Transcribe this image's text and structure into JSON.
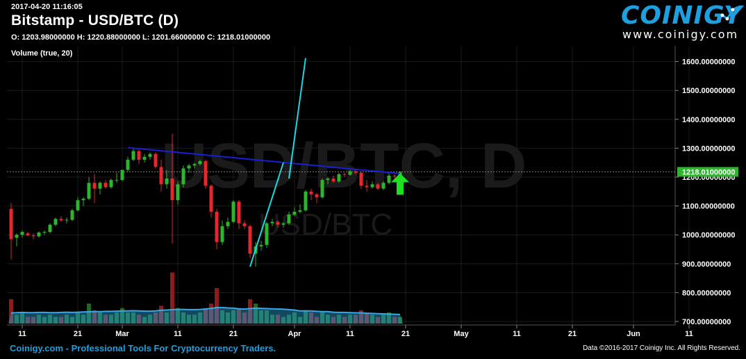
{
  "header": {
    "timestamp": "2017-04-20 11:16:05",
    "title": "Bitstamp - USD/BTC (D)",
    "ohlc": "O: 1203.98000000 H: 1220.88000000 L: 1201.66000000 C: 1218.01000000",
    "volume_label": "Volume (true, 20)"
  },
  "brand": {
    "name": "COINIGY",
    "url": "www.coinigy.com"
  },
  "watermark": {
    "big": "USD/BTC, D",
    "small": "USD/BTC"
  },
  "footer": {
    "left": "Coinigy.com - Professional Tools For Cryptocurrency Traders.",
    "right": "Data ©2016-2017 Coinigy Inc. All Rights Reserved."
  },
  "colors": {
    "up": "#2db52d",
    "down": "#e8262e",
    "vol_up": "#1e6b1e",
    "vol_down": "#8c1c1c",
    "grid": "#1c1c1c",
    "trend_blue": "#1820d6",
    "trend_cyan": "#1dd8e0",
    "arrow": "#1fe01f",
    "vol_ma_fill": "#2aa0d8",
    "price_tag": "#2db52d"
  },
  "chart_data": {
    "type": "candlestick",
    "title": "Bitstamp - USD/BTC (D)",
    "ylim": [
      690,
      1660
    ],
    "y_ticks": [
      700,
      800,
      900,
      1000,
      1100,
      1200,
      1300,
      1400,
      1500,
      1600
    ],
    "y_tick_labels": [
      "700.00000000",
      "800.00000000",
      "900.00000000",
      "1000.00000000",
      "1100.00000000",
      "1200.00000000",
      "1300.00000000",
      "1400.00000000",
      "1500.00000000",
      "1600.00000000"
    ],
    "x_ticks": [
      {
        "date": "2017-02-11",
        "label": "11"
      },
      {
        "date": "2017-02-21",
        "label": "21"
      },
      {
        "date": "2017-03-01",
        "label": "Mar"
      },
      {
        "date": "2017-03-11",
        "label": "11"
      },
      {
        "date": "2017-03-21",
        "label": "21"
      },
      {
        "date": "2017-04-01",
        "label": "Apr"
      },
      {
        "date": "2017-04-11",
        "label": "11"
      },
      {
        "date": "2017-04-21",
        "label": "21"
      },
      {
        "date": "2017-05-01",
        "label": "May"
      },
      {
        "date": "2017-05-11",
        "label": "11"
      },
      {
        "date": "2017-05-21",
        "label": "21"
      },
      {
        "date": "2017-06-01",
        "label": "Jun"
      },
      {
        "date": "2017-06-11",
        "label": "11"
      }
    ],
    "last_price": 1218.01,
    "last_price_label": "1218.01000000",
    "candles": [
      {
        "date": "2017-02-09",
        "o": 1090,
        "h": 1110,
        "l": 915,
        "c": 985
      },
      {
        "date": "2017-02-10",
        "o": 990,
        "h": 1005,
        "l": 960,
        "c": 1000
      },
      {
        "date": "2017-02-11",
        "o": 1000,
        "h": 1015,
        "l": 990,
        "c": 1010
      },
      {
        "date": "2017-02-12",
        "o": 1005,
        "h": 1010,
        "l": 995,
        "c": 998
      },
      {
        "date": "2017-02-13",
        "o": 998,
        "h": 1005,
        "l": 985,
        "c": 995
      },
      {
        "date": "2017-02-14",
        "o": 995,
        "h": 1012,
        "l": 990,
        "c": 1008
      },
      {
        "date": "2017-02-15",
        "o": 1008,
        "h": 1015,
        "l": 1000,
        "c": 1010
      },
      {
        "date": "2017-02-16",
        "o": 1010,
        "h": 1040,
        "l": 1005,
        "c": 1035
      },
      {
        "date": "2017-02-17",
        "o": 1035,
        "h": 1060,
        "l": 1030,
        "c": 1055
      },
      {
        "date": "2017-02-18",
        "o": 1055,
        "h": 1065,
        "l": 1045,
        "c": 1050
      },
      {
        "date": "2017-02-19",
        "o": 1050,
        "h": 1060,
        "l": 1040,
        "c": 1052
      },
      {
        "date": "2017-02-20",
        "o": 1052,
        "h": 1090,
        "l": 1048,
        "c": 1085
      },
      {
        "date": "2017-02-21",
        "o": 1085,
        "h": 1130,
        "l": 1080,
        "c": 1120
      },
      {
        "date": "2017-02-22",
        "o": 1120,
        "h": 1130,
        "l": 1100,
        "c": 1125
      },
      {
        "date": "2017-02-23",
        "o": 1125,
        "h": 1200,
        "l": 1120,
        "c": 1180
      },
      {
        "date": "2017-02-24",
        "o": 1180,
        "h": 1210,
        "l": 1110,
        "c": 1160
      },
      {
        "date": "2017-02-25",
        "o": 1160,
        "h": 1185,
        "l": 1140,
        "c": 1180
      },
      {
        "date": "2017-02-26",
        "o": 1180,
        "h": 1190,
        "l": 1160,
        "c": 1165
      },
      {
        "date": "2017-02-27",
        "o": 1165,
        "h": 1195,
        "l": 1160,
        "c": 1190
      },
      {
        "date": "2017-02-28",
        "o": 1190,
        "h": 1215,
        "l": 1180,
        "c": 1190
      },
      {
        "date": "2017-03-01",
        "o": 1190,
        "h": 1225,
        "l": 1185,
        "c": 1225
      },
      {
        "date": "2017-03-02",
        "o": 1225,
        "h": 1270,
        "l": 1220,
        "c": 1260
      },
      {
        "date": "2017-03-03",
        "o": 1260,
        "h": 1300,
        "l": 1255,
        "c": 1290
      },
      {
        "date": "2017-03-04",
        "o": 1290,
        "h": 1295,
        "l": 1245,
        "c": 1260
      },
      {
        "date": "2017-03-05",
        "o": 1260,
        "h": 1280,
        "l": 1250,
        "c": 1270
      },
      {
        "date": "2017-03-06",
        "o": 1270,
        "h": 1285,
        "l": 1260,
        "c": 1280
      },
      {
        "date": "2017-03-07",
        "o": 1280,
        "h": 1285,
        "l": 1230,
        "c": 1235
      },
      {
        "date": "2017-03-08",
        "o": 1235,
        "h": 1260,
        "l": 1150,
        "c": 1175
      },
      {
        "date": "2017-03-09",
        "o": 1175,
        "h": 1225,
        "l": 1160,
        "c": 1195
      },
      {
        "date": "2017-03-10",
        "o": 1195,
        "h": 1350,
        "l": 970,
        "c": 1120
      },
      {
        "date": "2017-03-11",
        "o": 1120,
        "h": 1185,
        "l": 1105,
        "c": 1175
      },
      {
        "date": "2017-03-12",
        "o": 1175,
        "h": 1240,
        "l": 1165,
        "c": 1230
      },
      {
        "date": "2017-03-13",
        "o": 1230,
        "h": 1245,
        "l": 1215,
        "c": 1240
      },
      {
        "date": "2017-03-14",
        "o": 1240,
        "h": 1250,
        "l": 1230,
        "c": 1245
      },
      {
        "date": "2017-03-15",
        "o": 1245,
        "h": 1260,
        "l": 1240,
        "c": 1255
      },
      {
        "date": "2017-03-16",
        "o": 1255,
        "h": 1260,
        "l": 1160,
        "c": 1170
      },
      {
        "date": "2017-03-17",
        "o": 1170,
        "h": 1175,
        "l": 1060,
        "c": 1080
      },
      {
        "date": "2017-03-18",
        "o": 1080,
        "h": 1090,
        "l": 950,
        "c": 975
      },
      {
        "date": "2017-03-19",
        "o": 975,
        "h": 1050,
        "l": 965,
        "c": 1030
      },
      {
        "date": "2017-03-20",
        "o": 1030,
        "h": 1060,
        "l": 1020,
        "c": 1045
      },
      {
        "date": "2017-03-21",
        "o": 1045,
        "h": 1120,
        "l": 1040,
        "c": 1115
      },
      {
        "date": "2017-03-22",
        "o": 1115,
        "h": 1120,
        "l": 1020,
        "c": 1040
      },
      {
        "date": "2017-03-23",
        "o": 1040,
        "h": 1050,
        "l": 1020,
        "c": 1030
      },
      {
        "date": "2017-03-24",
        "o": 1030,
        "h": 1035,
        "l": 920,
        "c": 935
      },
      {
        "date": "2017-03-25",
        "o": 935,
        "h": 975,
        "l": 890,
        "c": 960
      },
      {
        "date": "2017-03-26",
        "o": 960,
        "h": 980,
        "l": 945,
        "c": 965
      },
      {
        "date": "2017-03-27",
        "o": 965,
        "h": 1045,
        "l": 955,
        "c": 1040
      },
      {
        "date": "2017-03-28",
        "o": 1040,
        "h": 1055,
        "l": 1030,
        "c": 1045
      },
      {
        "date": "2017-03-29",
        "o": 1045,
        "h": 1050,
        "l": 1025,
        "c": 1035
      },
      {
        "date": "2017-03-30",
        "o": 1035,
        "h": 1045,
        "l": 1025,
        "c": 1040
      },
      {
        "date": "2017-03-31",
        "o": 1040,
        "h": 1080,
        "l": 1035,
        "c": 1070
      },
      {
        "date": "2017-04-01",
        "o": 1070,
        "h": 1095,
        "l": 1065,
        "c": 1080
      },
      {
        "date": "2017-04-02",
        "o": 1080,
        "h": 1105,
        "l": 1075,
        "c": 1085
      },
      {
        "date": "2017-04-03",
        "o": 1085,
        "h": 1155,
        "l": 1080,
        "c": 1150
      },
      {
        "date": "2017-04-04",
        "o": 1150,
        "h": 1160,
        "l": 1120,
        "c": 1140
      },
      {
        "date": "2017-04-05",
        "o": 1140,
        "h": 1145,
        "l": 1110,
        "c": 1130
      },
      {
        "date": "2017-04-06",
        "o": 1130,
        "h": 1195,
        "l": 1125,
        "c": 1190
      },
      {
        "date": "2017-04-07",
        "o": 1190,
        "h": 1200,
        "l": 1175,
        "c": 1195
      },
      {
        "date": "2017-04-08",
        "o": 1195,
        "h": 1205,
        "l": 1180,
        "c": 1185
      },
      {
        "date": "2017-04-09",
        "o": 1185,
        "h": 1215,
        "l": 1180,
        "c": 1210
      },
      {
        "date": "2017-04-10",
        "o": 1210,
        "h": 1215,
        "l": 1200,
        "c": 1208
      },
      {
        "date": "2017-04-11",
        "o": 1208,
        "h": 1225,
        "l": 1205,
        "c": 1220
      },
      {
        "date": "2017-04-12",
        "o": 1220,
        "h": 1228,
        "l": 1210,
        "c": 1215
      },
      {
        "date": "2017-04-13",
        "o": 1215,
        "h": 1220,
        "l": 1160,
        "c": 1170
      },
      {
        "date": "2017-04-14",
        "o": 1170,
        "h": 1190,
        "l": 1150,
        "c": 1165
      },
      {
        "date": "2017-04-15",
        "o": 1165,
        "h": 1185,
        "l": 1160,
        "c": 1175
      },
      {
        "date": "2017-04-16",
        "o": 1175,
        "h": 1180,
        "l": 1155,
        "c": 1160
      },
      {
        "date": "2017-04-17",
        "o": 1160,
        "h": 1185,
        "l": 1155,
        "c": 1180
      },
      {
        "date": "2017-04-18",
        "o": 1180,
        "h": 1215,
        "l": 1175,
        "c": 1205
      },
      {
        "date": "2017-04-19",
        "o": 1205,
        "h": 1210,
        "l": 1195,
        "c": 1204
      },
      {
        "date": "2017-04-20",
        "o": 1203.98,
        "h": 1220.88,
        "l": 1201.66,
        "c": 1218.01
      }
    ],
    "volume": [
      11,
      4,
      5,
      3,
      3,
      4,
      3,
      4,
      3,
      3,
      4,
      3,
      5,
      4,
      9,
      6,
      5,
      4,
      4,
      5,
      7,
      5,
      5,
      4,
      3,
      4,
      5,
      8,
      5,
      23,
      7,
      5,
      4,
      4,
      5,
      7,
      9,
      16,
      6,
      5,
      6,
      7,
      5,
      11,
      9,
      6,
      6,
      4,
      4,
      3,
      4,
      5,
      3,
      6,
      5,
      3,
      5,
      4,
      3,
      4,
      3,
      4,
      4,
      6,
      5,
      4,
      3,
      4,
      5,
      3,
      3,
      2
    ],
    "volume_ma": [
      5,
      5.2,
      5.3,
      5.2,
      5.2,
      5.3,
      5.3,
      5.2,
      5.2,
      5.3,
      5.4,
      5.3,
      5.4,
      5.5,
      5.6,
      5.7,
      5.7,
      5.8,
      5.8,
      5.9,
      6.0,
      6.0,
      6.1,
      6.0,
      5.9,
      5.9,
      6.0,
      6.3,
      6.4,
      6.6,
      6.7,
      6.7,
      6.6,
      6.6,
      6.7,
      6.9,
      7.2,
      7.6,
      7.6,
      7.4,
      7.3,
      7.0,
      6.9,
      7.1,
      7.3,
      7.2,
      7.1,
      7.0,
      6.9,
      6.8,
      6.6,
      6.4,
      6.0,
      6.0,
      6.0,
      5.8,
      5.7,
      5.7,
      5.4,
      5.3,
      5.3,
      5.2,
      5.1,
      5.1,
      4.9,
      4.8,
      4.7,
      4.6,
      4.5,
      4.4,
      4.3,
      4.1
    ],
    "annotations": [
      {
        "type": "trendline",
        "color": "blue",
        "from": {
          "date": "2017-03-02",
          "price": 1302
        },
        "to": {
          "date": "2017-04-20",
          "price": 1212
        }
      },
      {
        "type": "trendline",
        "color": "cyan",
        "from": {
          "date": "2017-03-24",
          "price": 890
        },
        "to": {
          "date": "2017-03-30",
          "price": 1250
        }
      },
      {
        "type": "trendline",
        "color": "cyan",
        "from": {
          "date": "2017-03-31",
          "price": 1195
        },
        "to": {
          "date": "2017-04-03",
          "price": 1612
        }
      },
      {
        "type": "arrow_up",
        "color": "green",
        "date": "2017-04-20",
        "price": 1170
      }
    ]
  }
}
